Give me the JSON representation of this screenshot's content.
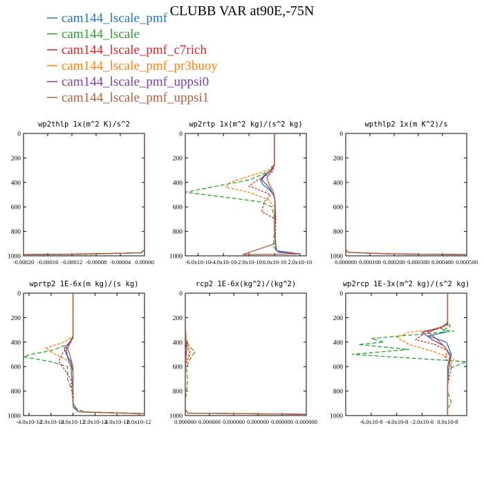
{
  "figure_title": "CLUBB VAR at90E,-75N",
  "legend": [
    {
      "name": "cam144_lscale_pmf",
      "color": "#1f77b4"
    },
    {
      "name": "cam144_lscale",
      "color": "#2ca02c"
    },
    {
      "name": "cam144_lscale_pmf_c7rich",
      "color": "#d62728"
    },
    {
      "name": "cam144_lscale_pmf_pr3buoy",
      "color": "#ff7f0e"
    },
    {
      "name": "cam144_lscale_pmf_uppsi0",
      "color": "#7a3fa0"
    },
    {
      "name": "cam144_lscale_pmf_uppsi1",
      "color": "#b0603a"
    }
  ],
  "chart_data": [
    {
      "type": "line",
      "title": "wp2thlp  1x(m^2 K)/s^2",
      "ylim": [
        1000,
        0
      ],
      "yticks": [
        "0",
        "200",
        "400",
        "600",
        "800",
        "1000"
      ],
      "xlim": [
        -0.0002,
        0.0
      ],
      "xticks": [
        "-0.00020",
        "-0.00016",
        "-0.00012",
        "-0.00008",
        "-0.00004",
        "0.00000"
      ],
      "series": [
        {
          "name": "cam144_lscale_pmf",
          "x": [
            0,
            0,
            -5e-06,
            -0.00012,
            -0.0002
          ],
          "y": [
            0,
            950,
            975,
            987,
            990
          ]
        },
        {
          "name": "cam144_lscale",
          "x": [
            0,
            0,
            -6e-06,
            -0.0001,
            -0.0002
          ],
          "y": [
            0,
            950,
            975,
            988,
            991
          ]
        },
        {
          "name": "cam144_lscale_pmf_c7rich",
          "x": [
            0,
            0,
            -5e-06,
            -0.00013,
            -0.0002
          ],
          "y": [
            0,
            950,
            975,
            987,
            990
          ]
        },
        {
          "name": "cam144_lscale_pmf_pr3buoy",
          "x": [
            0,
            0,
            -5e-06,
            -0.00012,
            -0.0002
          ],
          "y": [
            0,
            950,
            975,
            987,
            990
          ]
        },
        {
          "name": "cam144_lscale_pmf_uppsi0",
          "x": [
            0,
            0,
            -5e-06,
            -0.00012,
            -0.0002
          ],
          "y": [
            0,
            950,
            975,
            987,
            990
          ]
        },
        {
          "name": "cam144_lscale_pmf_uppsi1",
          "x": [
            0,
            0,
            -5e-06,
            -0.00012,
            -0.0002
          ],
          "y": [
            0,
            950,
            975,
            987,
            990
          ]
        }
      ]
    },
    {
      "type": "line",
      "title": "wp2rtp  1x(m^2 kg)/(s^2 kg)",
      "ylim": [
        1000,
        0
      ],
      "yticks": [
        "0",
        "200",
        "400",
        "600",
        "800",
        "1000"
      ],
      "xlim": [
        -7e-10,
        2.5e-10
      ],
      "xticks": [
        "-6.0x10-10",
        "-4.0x10-10",
        "-2.0x10-10",
        "0.0x10-10",
        "2.0x10-10"
      ],
      "xtick_values": [
        -6e-10,
        -4e-10,
        -2e-10,
        0,
        2e-10
      ],
      "series": [
        {
          "name": "cam144_lscale_pmf",
          "x": [
            0,
            0,
            -1e-11,
            -8e-11,
            -1.1e-10,
            -9e-11,
            -4e-11,
            0,
            5e-12,
            1e-11,
            0,
            1e-11,
            1e-11,
            3e-11,
            2e-10
          ],
          "y": [
            0,
            240,
            290,
            340,
            380,
            420,
            460,
            510,
            560,
            700,
            760,
            900,
            950,
            970,
            985
          ]
        },
        {
          "name": "cam144_lscale",
          "x": [
            0,
            0,
            -2e-11,
            -2e-10,
            -5e-10,
            -7e-10,
            -4e-10,
            -1e-10,
            -2e-11,
            0,
            0,
            -1e-11,
            2e-11,
            2e-10
          ],
          "y": [
            0,
            250,
            300,
            380,
            440,
            480,
            520,
            560,
            600,
            700,
            800,
            920,
            960,
            985
          ]
        },
        {
          "name": "cam144_lscale_pmf_c7rich",
          "x": [
            0,
            0,
            -2e-11,
            -1.2e-10,
            -2e-10,
            -1.2e-10,
            -3e-11,
            -8e-11,
            -1e-10,
            1e-11,
            1e-11,
            5e-12,
            2e-11,
            2e-10
          ],
          "y": [
            0,
            260,
            320,
            370,
            430,
            460,
            500,
            560,
            640,
            700,
            750,
            900,
            960,
            985
          ]
        },
        {
          "name": "cam144_lscale_pmf_pr3buoy",
          "x": [
            0,
            0,
            -5e-11,
            -2e-10,
            -3.5e-10,
            -3.8e-10,
            -2e-10,
            -5e-11,
            0,
            0,
            5e-12,
            2e-11,
            2e-10
          ],
          "y": [
            0,
            250,
            300,
            350,
            400,
            440,
            480,
            540,
            600,
            800,
            900,
            960,
            985
          ]
        },
        {
          "name": "cam144_lscale_pmf_uppsi0",
          "x": [
            0,
            0,
            -3e-11,
            -8e-11,
            -1e-10,
            -6e-11,
            -3e-11,
            0,
            5e-12,
            0,
            5e-12,
            2e-11,
            2e-10
          ],
          "y": [
            0,
            250,
            300,
            350,
            380,
            420,
            460,
            520,
            600,
            750,
            900,
            960,
            985
          ]
        },
        {
          "name": "cam144_lscale_pmf_uppsi1",
          "x": [
            0,
            0,
            -2e-11,
            -6e-11,
            -4e-11,
            -1e-11,
            0,
            5e-12,
            0,
            5e-12,
            -2.5e-10,
            2e-10
          ],
          "y": [
            0,
            250,
            300,
            360,
            420,
            470,
            520,
            600,
            750,
            900,
            990,
            985
          ]
        }
      ]
    },
    {
      "type": "line",
      "title": "wpthlp2  1x(m K^2)/s",
      "ylim": [
        1000,
        0
      ],
      "yticks": [
        "0",
        "200",
        "400",
        "600",
        "800",
        "1000"
      ],
      "xlim": [
        0,
        0.0005
      ],
      "xticks": [
        "0.000000",
        "0.000100",
        "0.000200",
        "0.000300",
        "0.000400",
        "0.000500"
      ],
      "series": [
        {
          "name": "cam144_lscale_pmf",
          "x": [
            0,
            0,
            1e-05,
            0.0002,
            0.0005
          ],
          "y": [
            0,
            950,
            972,
            985,
            990
          ]
        },
        {
          "name": "cam144_lscale",
          "x": [
            0,
            0,
            1.2e-05,
            0.00022,
            0.0005
          ],
          "y": [
            0,
            950,
            973,
            986,
            991
          ]
        },
        {
          "name": "cam144_lscale_pmf_c7rich",
          "x": [
            0,
            0,
            1e-05,
            0.0002,
            0.0005
          ],
          "y": [
            0,
            950,
            972,
            985,
            990
          ]
        },
        {
          "name": "cam144_lscale_pmf_pr3buoy",
          "x": [
            0,
            0,
            1e-05,
            0.0002,
            0.0005
          ],
          "y": [
            0,
            950,
            972,
            985,
            990
          ]
        },
        {
          "name": "cam144_lscale_pmf_uppsi0",
          "x": [
            0,
            0,
            1e-05,
            0.0002,
            0.0005
          ],
          "y": [
            0,
            950,
            972,
            985,
            990
          ]
        },
        {
          "name": "cam144_lscale_pmf_uppsi1",
          "x": [
            0,
            0,
            1e-05,
            0.0002,
            0.0005
          ],
          "y": [
            0,
            950,
            972,
            985,
            990
          ]
        }
      ]
    },
    {
      "type": "line",
      "title": "wprtp2  1E-6x(m kg)/(s kg)",
      "ylim": [
        1000,
        0
      ],
      "yticks": [
        "0",
        "200",
        "400",
        "600",
        "800",
        "1000"
      ],
      "xlim": [
        -4.5e-12,
        6.5e-12
      ],
      "xticks": [
        "-4.0x10-12",
        "-2.0x10-12",
        "0.0x10-12",
        "2.0x10-12",
        "4.0x10-12",
        "6.0x10-12"
      ],
      "xtick_values": [
        -4e-12,
        -2e-12,
        0,
        2e-12,
        4e-12,
        6e-12
      ],
      "series": [
        {
          "name": "cam144_lscale_pmf",
          "x": [
            0,
            0,
            -2e-13,
            -6e-13,
            -5e-13,
            -2e-13,
            0,
            0,
            5e-13,
            6.5e-12
          ],
          "y": [
            0,
            350,
            400,
            460,
            520,
            600,
            800,
            930,
            970,
            985
          ]
        },
        {
          "name": "cam144_lscale",
          "x": [
            0,
            0,
            -5e-13,
            -2e-12,
            -3.8e-12,
            -4.5e-12,
            -2e-12,
            -5e-13,
            -5e-13,
            0,
            0,
            1e-12,
            6.5e-12
          ],
          "y": [
            0,
            370,
            420,
            470,
            500,
            520,
            560,
            600,
            700,
            820,
            930,
            970,
            985
          ]
        },
        {
          "name": "cam144_lscale_pmf_c7rich",
          "x": [
            0,
            0,
            -4e-13,
            -1e-12,
            -1.3e-12,
            -8e-13,
            -2e-13,
            0,
            5e-13,
            6.5e-12
          ],
          "y": [
            0,
            350,
            420,
            500,
            560,
            620,
            700,
            900,
            970,
            985
          ]
        },
        {
          "name": "cam144_lscale_pmf_pr3buoy",
          "x": [
            0,
            0,
            -8e-13,
            -2.5e-12,
            -2e-12,
            -5e-13,
            0,
            0,
            5e-13,
            6.5e-12
          ],
          "y": [
            0,
            350,
            400,
            450,
            480,
            550,
            620,
            900,
            970,
            985
          ]
        },
        {
          "name": "cam144_lscale_pmf_uppsi0",
          "x": [
            0,
            0,
            -3e-13,
            -8e-13,
            -6e-13,
            -2e-13,
            0,
            0,
            5e-13,
            6.5e-12
          ],
          "y": [
            0,
            350,
            400,
            450,
            500,
            560,
            650,
            900,
            970,
            985
          ]
        },
        {
          "name": "cam144_lscale_pmf_uppsi1",
          "x": [
            0,
            0,
            -2e-13,
            -5e-13,
            -3e-13,
            0,
            0,
            5e-13,
            6.5e-12
          ],
          "y": [
            0,
            350,
            400,
            450,
            500,
            600,
            900,
            970,
            985
          ]
        }
      ]
    },
    {
      "type": "line",
      "title": "rcp2  1E-6x(kg^2)/(kg^2)",
      "ylim": [
        1000,
        0
      ],
      "yticks": [
        "0",
        "200",
        "400",
        "600",
        "800",
        "1000"
      ],
      "xlim": [
        0,
        1e-08
      ],
      "xticks": [
        "0.000000",
        "0.000000",
        "0.000000",
        "0.000000",
        "0.000000",
        "0.000000"
      ],
      "xtick_values": [
        0,
        2e-09,
        4e-09,
        6e-09,
        8e-09,
        1e-08
      ],
      "series": [
        {
          "name": "cam144_lscale_pmf",
          "x": [
            0,
            0,
            5e-11,
            1e-10,
            5e-11,
            0,
            0,
            2e-10,
            1e-08
          ],
          "y": [
            0,
            250,
            400,
            460,
            520,
            600,
            950,
            980,
            990
          ]
        },
        {
          "name": "cam144_lscale",
          "x": [
            0,
            0,
            4e-11,
            2e-10,
            8e-10,
            3e-10,
            1e-10,
            2e-10,
            1e-10,
            0,
            0,
            2e-10,
            1e-08
          ],
          "y": [
            0,
            240,
            380,
            420,
            480,
            550,
            620,
            700,
            800,
            900,
            950,
            980,
            990
          ]
        },
        {
          "name": "cam144_lscale_pmf_c7rich",
          "x": [
            0,
            0,
            5e-11,
            2e-10,
            4e-10,
            2e-10,
            5e-11,
            0,
            0,
            2e-10,
            1e-08
          ],
          "y": [
            0,
            250,
            380,
            450,
            500,
            540,
            580,
            620,
            950,
            980,
            990
          ]
        },
        {
          "name": "cam144_lscale_pmf_pr3buoy",
          "x": [
            0,
            0,
            8e-11,
            3e-10,
            4e-10,
            1e-10,
            0,
            0,
            2e-10,
            1e-08
          ],
          "y": [
            0,
            250,
            380,
            430,
            480,
            540,
            600,
            950,
            980,
            990
          ]
        },
        {
          "name": "cam144_lscale_pmf_uppsi0",
          "x": [
            0,
            0,
            5e-11,
            1e-10,
            5e-11,
            0,
            0,
            2e-10,
            1e-08
          ],
          "y": [
            0,
            250,
            400,
            460,
            520,
            600,
            950,
            980,
            990
          ]
        },
        {
          "name": "cam144_lscale_pmf_uppsi1",
          "x": [
            0,
            0,
            5e-11,
            1e-10,
            5e-11,
            0,
            0,
            2e-10,
            1e-08
          ],
          "y": [
            0,
            250,
            400,
            460,
            520,
            600,
            950,
            980,
            990
          ]
        }
      ]
    },
    {
      "type": "line",
      "title": "wp2rcp  1E-3x(m^2 kg)/(s^2 kg)",
      "ylim": [
        1000,
        0
      ],
      "yticks": [
        "0",
        "200",
        "400",
        "600",
        "800",
        "1000"
      ],
      "xlim": [
        -8e-08,
        1.5e-08
      ],
      "xticks": [
        "-6.0x10-8",
        "-4.0x10-8",
        "-2.0x10-8",
        "0.0x10-8"
      ],
      "xtick_values": [
        -6e-08,
        -4e-08,
        -2e-08,
        0
      ],
      "series": [
        {
          "name": "cam144_lscale_pmf",
          "x": [
            0,
            0,
            -5e-09,
            -2e-09,
            -1.5e-08,
            -1e-09,
            3e-09,
            1e-09,
            0,
            0
          ],
          "y": [
            0,
            240,
            280,
            320,
            350,
            400,
            500,
            600,
            750,
            1000
          ]
        },
        {
          "name": "cam144_lscale",
          "x": [
            0,
            0,
            2e-09,
            -3e-09,
            5e-09,
            -1.5e-08,
            -6e-08,
            -5e-08,
            -7e-08,
            -3e-08,
            -7.5e-08,
            1.5e-08,
            0,
            0,
            3e-09,
            0,
            0
          ],
          "y": [
            0,
            240,
            270,
            300,
            310,
            330,
            370,
            400,
            420,
            460,
            500,
            560,
            620,
            800,
            900,
            940,
            1000
          ]
        },
        {
          "name": "cam144_lscale_pmf_c7rich",
          "x": [
            0,
            0,
            -1e-08,
            -2e-08,
            -2.5e-08,
            -1e-08,
            0,
            -2e-09,
            3e-09,
            0,
            0
          ],
          "y": [
            0,
            260,
            290,
            340,
            380,
            420,
            470,
            520,
            600,
            750,
            1000
          ]
        },
        {
          "name": "cam144_lscale_pmf_pr3buoy",
          "x": [
            0,
            0,
            -5e-09,
            -3e-08,
            -4e-08,
            -3e-08,
            -1e-08,
            5e-09,
            0,
            0
          ],
          "y": [
            0,
            250,
            290,
            320,
            360,
            420,
            480,
            540,
            620,
            1000
          ]
        },
        {
          "name": "cam144_lscale_pmf_uppsi0",
          "x": [
            0,
            0,
            -5e-09,
            -2e-08,
            -1.2e-08,
            -3e-09,
            2e-09,
            0,
            0
          ],
          "y": [
            0,
            250,
            280,
            320,
            380,
            430,
            500,
            600,
            1000
          ]
        },
        {
          "name": "cam144_lscale_pmf_uppsi1",
          "x": [
            0,
            0,
            -3e-09,
            -1.5e-08,
            -8e-09,
            -2e-09,
            2e-09,
            0,
            0
          ],
          "y": [
            0,
            240,
            270,
            320,
            380,
            440,
            520,
            600,
            1000
          ]
        }
      ]
    }
  ]
}
